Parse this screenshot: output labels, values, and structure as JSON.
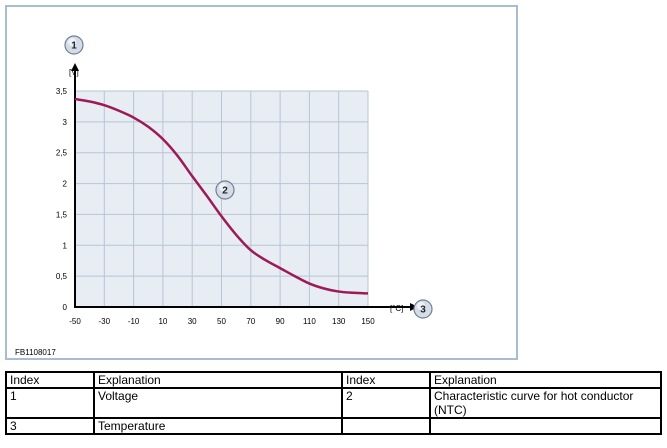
{
  "figure": {
    "code": "FB1108017",
    "colors": {
      "frame": "#a9bdd0",
      "plot_bg": "#e8ecf3",
      "grid": "#b9c5d6",
      "curve": "#9b1a57",
      "callout_fill": "#d6dce6",
      "callout_stroke": "#6f7f95"
    },
    "callouts": [
      {
        "id": "1",
        "label": "1",
        "attached_to": "y-axis"
      },
      {
        "id": "2",
        "label": "2",
        "attached_to": "curve"
      },
      {
        "id": "3",
        "label": "3",
        "attached_to": "x-axis"
      }
    ]
  },
  "chart_data": {
    "type": "line",
    "title": "",
    "xlabel": "[°C]",
    "ylabel": "[V]",
    "xlim": [
      -50,
      150
    ],
    "ylim": [
      0,
      3.5
    ],
    "x_ticks": [
      "-50",
      "-30",
      "-10",
      "10",
      "30",
      "50",
      "70",
      "90",
      "110",
      "130",
      "150"
    ],
    "y_ticks": [
      "0",
      "0,5",
      "1",
      "1,5",
      "2",
      "2,5",
      "3",
      "3,5"
    ],
    "grid": true,
    "series": [
      {
        "x": [
          -50,
          -40,
          -30,
          -20,
          -10,
          0,
          10,
          20,
          30,
          40,
          50,
          60,
          70,
          80,
          90,
          100,
          110,
          120,
          130,
          140,
          150
        ],
        "y": [
          3.37,
          3.33,
          3.27,
          3.18,
          3.07,
          2.92,
          2.72,
          2.45,
          2.12,
          1.8,
          1.47,
          1.17,
          0.92,
          0.76,
          0.63,
          0.5,
          0.38,
          0.3,
          0.25,
          0.23,
          0.22
        ]
      }
    ]
  },
  "legend_table": {
    "headers": [
      "Index",
      "Explanation",
      "Index",
      "Explanation"
    ],
    "rows": [
      [
        "1",
        "Voltage",
        "2",
        "Characteristic curve for hot conductor (NTC)"
      ],
      [
        "3",
        "Temperature",
        "",
        ""
      ]
    ]
  }
}
